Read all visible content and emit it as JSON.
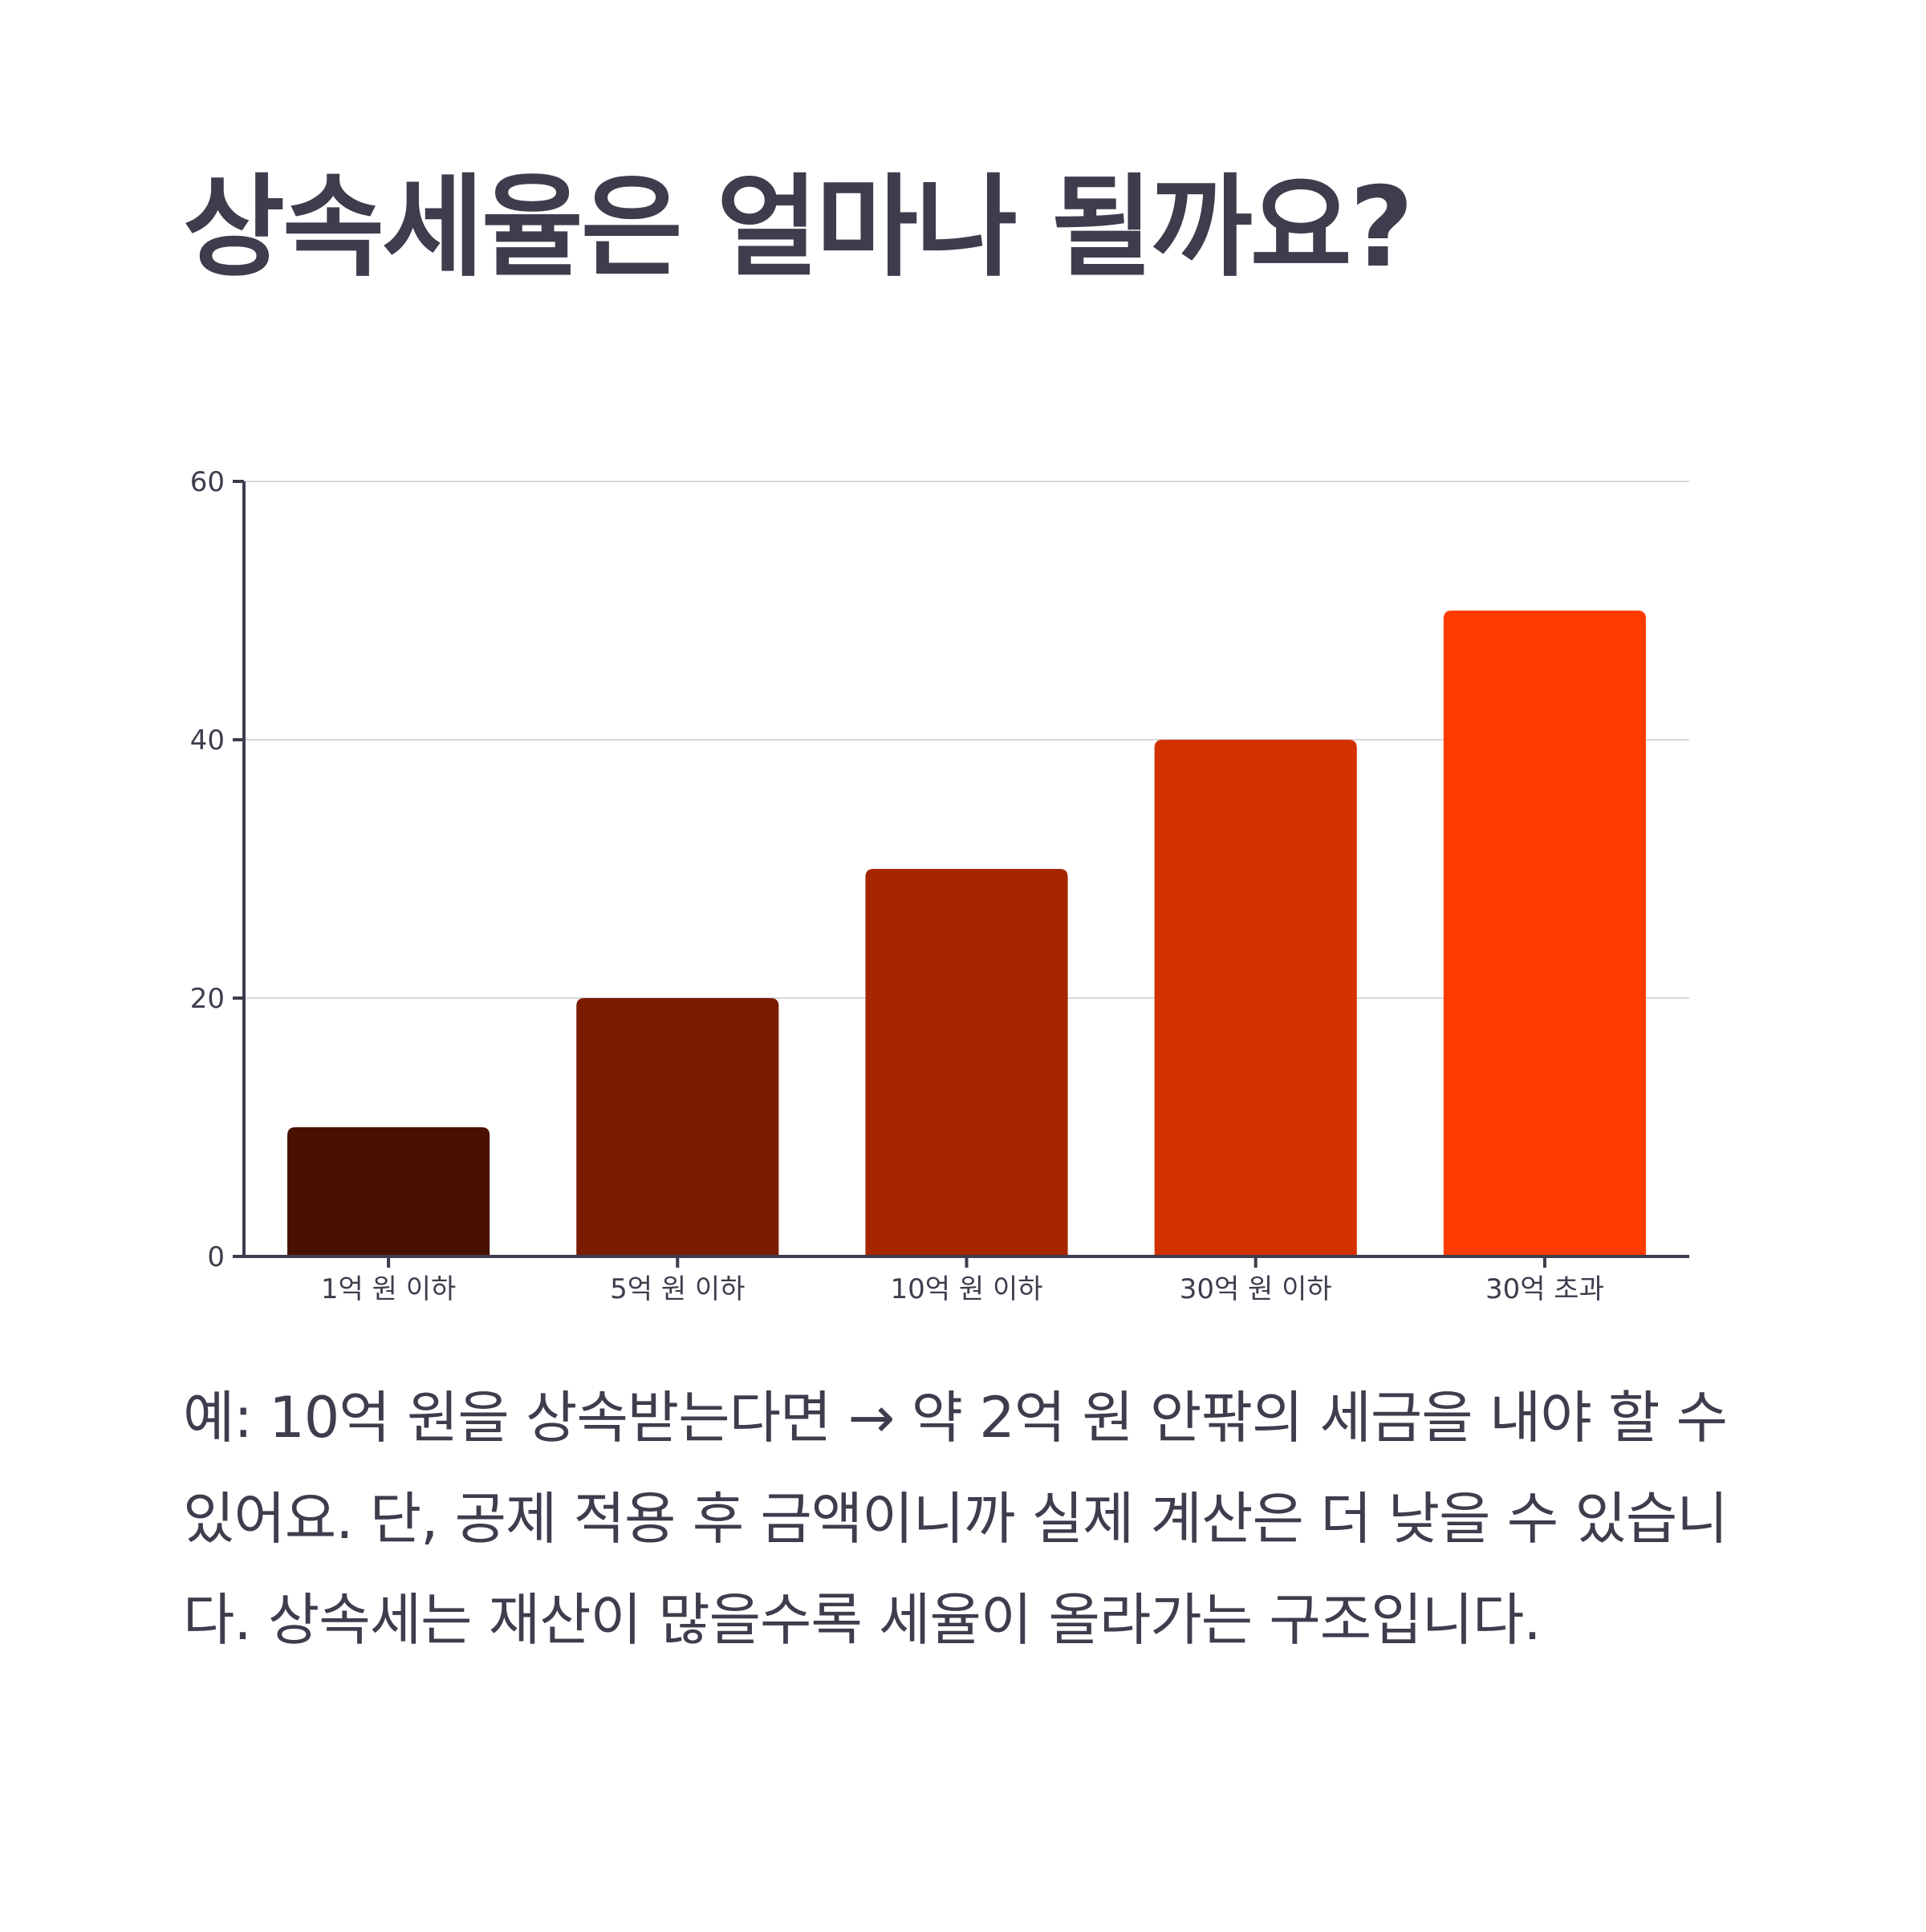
{
  "title": "상속세율은 얼마나 될까요?",
  "caption": "예: 10억 원을 상속받는다면 → 약 2억 원 안팎의 세금을 내야 할 수 있어요. 단, 공제 적용 후 금액이니까 실제 계산은 더 낮을 수 있습니다. 상속세는 재산이 많을수록 세율이 올라가는 구조입니다.",
  "chart_data": {
    "type": "bar",
    "categories": [
      "1억 원 이하",
      "5억 원 이하",
      "10억 원 이하",
      "30억 원 이하",
      "30억 초과"
    ],
    "values": [
      10,
      20,
      30,
      40,
      50
    ],
    "colors": [
      "#4a1100",
      "#7a1c00",
      "#a62600",
      "#d43100",
      "#ff3c00"
    ],
    "ylim": [
      0,
      60
    ],
    "yticks": [
      0,
      20,
      40,
      60
    ],
    "grid": true,
    "gridlines_color": "#d9d9d9",
    "axis_color": "#3f3c4d"
  }
}
